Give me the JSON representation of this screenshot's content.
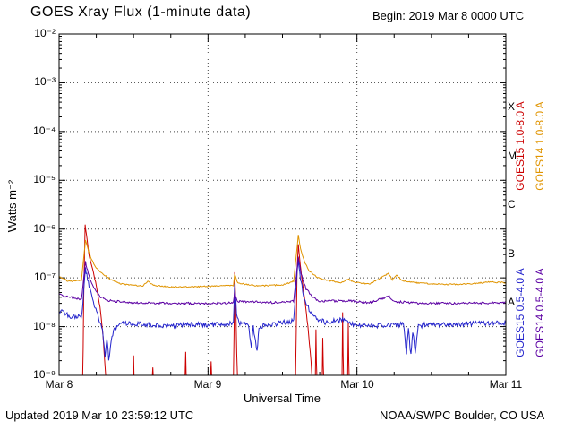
{
  "header": {
    "title": "GOES Xray Flux (1-minute data)",
    "begin_label": "Begin: 2019 Mar 8 0000 UTC"
  },
  "footer": {
    "updated": "Updated 2019 Mar 10 23:59:12 UTC",
    "credit": "NOAA/SWPC Boulder, CO USA"
  },
  "axes": {
    "x": {
      "label": "Universal Time",
      "ticks": [
        "Mar 8",
        "Mar 9",
        "Mar 10",
        "Mar 11"
      ]
    },
    "y": {
      "label": "Watts m⁻²",
      "ticks": [
        "10⁻²",
        "10⁻³",
        "10⁻⁴",
        "10⁻⁵",
        "10⁻⁶",
        "10⁻⁷",
        "10⁻⁸",
        "10⁻⁹"
      ]
    },
    "right_classes": [
      "X",
      "M",
      "C",
      "B",
      "A"
    ]
  },
  "legend": [
    {
      "label": "GOES15 1.0-8.0 A",
      "color": "#cc0000"
    },
    {
      "label": "GOES14 1.0-8.0 A",
      "color": "#e09400"
    },
    {
      "label": "GOES15 0.5-4.0 A",
      "color": "#2424cc"
    },
    {
      "label": "GOES14 0.5-4.0 A",
      "color": "#5c00a3"
    }
  ],
  "chart_data": {
    "type": "line",
    "title": "GOES Xray Flux (1-minute data)",
    "xlabel": "Universal Time",
    "ylabel": "Watts m⁻²",
    "yscale": "log",
    "ylim": [
      1e-09,
      0.01
    ],
    "x_range_hours": [
      0,
      72
    ],
    "x_day_labels": [
      "Mar 8",
      "Mar 9",
      "Mar 10",
      "Mar 11"
    ],
    "grid": "dotted horizontal lines at each decade, dotted vertical lines at day boundaries",
    "flare_class_letters": [
      "X",
      "M",
      "C",
      "B",
      "A"
    ],
    "series": [
      {
        "name": "GOES15 1.0-8.0 A",
        "color": "#cc0000",
        "z": 1,
        "seed": 42,
        "noise": 0.03,
        "points": [
          [
            0,
            4e-10
          ],
          [
            3.8,
            4e-10
          ],
          [
            3.95,
            3e-08
          ],
          [
            4.2,
            1.2e-06
          ],
          [
            4.4,
            8e-07
          ],
          [
            4.8,
            3e-07
          ],
          [
            5.4,
            1.5e-07
          ],
          [
            6.0,
            7e-08
          ],
          [
            6.6,
            2.5e-08
          ],
          [
            7.1,
            6e-09
          ],
          [
            7.5,
            1e-09
          ],
          [
            7.7,
            4e-10
          ],
          [
            11.9,
            4e-10
          ],
          [
            12.0,
            2.5e-09
          ],
          [
            12.15,
            4e-10
          ],
          [
            15.0,
            4e-10
          ],
          [
            15.1,
            1.5e-09
          ],
          [
            15.2,
            4e-10
          ],
          [
            20.3,
            4e-10
          ],
          [
            20.4,
            3e-09
          ],
          [
            20.55,
            4e-10
          ],
          [
            24.4,
            4e-10
          ],
          [
            24.5,
            2e-09
          ],
          [
            24.6,
            4e-10
          ],
          [
            28.1,
            4e-10
          ],
          [
            28.3,
            1.3e-07
          ],
          [
            28.5,
            2.2e-08
          ],
          [
            28.75,
            4e-10
          ],
          [
            38.1,
            4e-10
          ],
          [
            38.35,
            1.5e-07
          ],
          [
            38.55,
            5e-07
          ],
          [
            38.75,
            2.5e-07
          ],
          [
            39.1,
            1e-07
          ],
          [
            39.6,
            3.5e-08
          ],
          [
            40.1,
            1e-08
          ],
          [
            40.6,
            2e-09
          ],
          [
            40.9,
            4e-10
          ],
          [
            41.3,
            4e-10
          ],
          [
            41.4,
            9e-09
          ],
          [
            41.55,
            4e-10
          ],
          [
            42.4,
            4e-10
          ],
          [
            42.5,
            6e-09
          ],
          [
            42.65,
            4e-10
          ],
          [
            45.6,
            4e-10
          ],
          [
            45.7,
            2e-08
          ],
          [
            45.85,
            4e-10
          ],
          [
            46.5,
            4e-10
          ],
          [
            46.6,
            1.2e-08
          ],
          [
            46.75,
            4e-10
          ],
          [
            72,
            4e-10
          ]
        ]
      },
      {
        "name": "GOES14 1.0-8.0 A",
        "color": "#e09400",
        "z": 4,
        "seed": 43,
        "noise": 0.025,
        "points": [
          [
            0,
            1.05e-07
          ],
          [
            1.5,
            8.5e-08
          ],
          [
            3.6,
            9e-08
          ],
          [
            4.25,
            6e-07
          ],
          [
            4.6,
            4.2e-07
          ],
          [
            5.2,
            2.4e-07
          ],
          [
            6.0,
            1.6e-07
          ],
          [
            7.0,
            1.2e-07
          ],
          [
            8.5,
            9e-08
          ],
          [
            10.0,
            7.5e-08
          ],
          [
            13.5,
            6.8e-08
          ],
          [
            14.3,
            8.5e-08
          ],
          [
            15.2,
            7e-08
          ],
          [
            18.0,
            6.5e-08
          ],
          [
            22.0,
            6.6e-08
          ],
          [
            26.0,
            6.8e-08
          ],
          [
            28.1,
            7e-08
          ],
          [
            28.3,
            1.2e-07
          ],
          [
            28.8,
            7.8e-08
          ],
          [
            32.0,
            6.8e-08
          ],
          [
            36.0,
            7.2e-08
          ],
          [
            37.8,
            8.5e-08
          ],
          [
            38.55,
            7.5e-07
          ],
          [
            38.9,
            4e-07
          ],
          [
            39.5,
            2.2e-07
          ],
          [
            40.3,
            1.4e-07
          ],
          [
            41.5,
            1.05e-07
          ],
          [
            43.0,
            9e-08
          ],
          [
            45.5,
            8e-08
          ],
          [
            46.6,
            9.5e-08
          ],
          [
            47.5,
            8.2e-08
          ],
          [
            50.0,
            7.4e-08
          ],
          [
            53.1,
            1.25e-07
          ],
          [
            53.7,
            9e-08
          ],
          [
            54.4,
            1.15e-07
          ],
          [
            55.2,
            8.8e-08
          ],
          [
            58.0,
            7.8e-08
          ],
          [
            62.0,
            7.3e-08
          ],
          [
            66.0,
            7.5e-08
          ],
          [
            69.5,
            8.2e-08
          ],
          [
            72,
            8e-08
          ]
        ]
      },
      {
        "name": "GOES15 0.5-4.0 A",
        "color": "#2424cc",
        "z": 2,
        "seed": 45,
        "noise": 0.1,
        "points": [
          [
            0,
            2.2e-08
          ],
          [
            2.0,
            1.5e-08
          ],
          [
            3.7,
            1.7e-08
          ],
          [
            4.25,
            1.6e-07
          ],
          [
            4.7,
            8e-08
          ],
          [
            5.4,
            3.5e-08
          ],
          [
            6.2,
            1.7e-08
          ],
          [
            7.0,
            9e-09
          ],
          [
            7.4,
            2.5e-09
          ],
          [
            7.7,
            6e-09
          ],
          [
            8.0,
            2e-09
          ],
          [
            8.4,
            5e-09
          ],
          [
            8.9,
            9e-09
          ],
          [
            10,
            1.2e-08
          ],
          [
            14,
            1.1e-08
          ],
          [
            18,
            1.05e-08
          ],
          [
            22,
            1.1e-08
          ],
          [
            26,
            1.1e-08
          ],
          [
            28.1,
            1.2e-08
          ],
          [
            28.3,
            7e-08
          ],
          [
            28.6,
            2e-08
          ],
          [
            29.0,
            1.2e-08
          ],
          [
            30.5,
            1.1e-08
          ],
          [
            31.0,
            4e-09
          ],
          [
            31.3,
            1e-08
          ],
          [
            31.9,
            3e-09
          ],
          [
            32.2,
            1e-08
          ],
          [
            34,
            1.1e-08
          ],
          [
            37.8,
            1.3e-08
          ],
          [
            38.55,
            2.4e-07
          ],
          [
            38.9,
            9e-08
          ],
          [
            39.5,
            4e-08
          ],
          [
            40.3,
            2.2e-08
          ],
          [
            41.5,
            1.5e-08
          ],
          [
            43,
            1.2e-08
          ],
          [
            45.7,
            1.4e-08
          ],
          [
            47,
            1.1e-08
          ],
          [
            51,
            1.05e-08
          ],
          [
            55.5,
            1.1e-08
          ],
          [
            56.0,
            3e-09
          ],
          [
            56.3,
            9e-09
          ],
          [
            56.7,
            2.5e-09
          ],
          [
            57.0,
            8e-09
          ],
          [
            57.4,
            3e-09
          ],
          [
            57.9,
            1e-08
          ],
          [
            59,
            1.1e-08
          ],
          [
            63,
            1.1e-08
          ],
          [
            67,
            1.15e-08
          ],
          [
            72,
            1.2e-08
          ]
        ]
      },
      {
        "name": "GOES14 0.5-4.0 A",
        "color": "#5c00a3",
        "z": 3,
        "seed": 44,
        "noise": 0.045,
        "points": [
          [
            0,
            4.5e-08
          ],
          [
            3.6,
            3.6e-08
          ],
          [
            4.25,
            2.2e-07
          ],
          [
            4.7,
            1.2e-07
          ],
          [
            5.5,
            6.5e-08
          ],
          [
            6.5,
            4.2e-08
          ],
          [
            8.0,
            3.4e-08
          ],
          [
            12,
            3.1e-08
          ],
          [
            18,
            3e-08
          ],
          [
            24,
            3e-08
          ],
          [
            28.1,
            3.1e-08
          ],
          [
            28.3,
            5e-08
          ],
          [
            28.7,
            3.3e-08
          ],
          [
            34,
            3.1e-08
          ],
          [
            37.8,
            3.3e-08
          ],
          [
            38.55,
            2.6e-07
          ],
          [
            39.0,
            1.2e-07
          ],
          [
            39.8,
            6e-08
          ],
          [
            40.8,
            4e-08
          ],
          [
            42,
            3.3e-08
          ],
          [
            46.6,
            3.4e-08
          ],
          [
            50,
            3.1e-08
          ],
          [
            53.2,
            4.2e-08
          ],
          [
            53.9,
            3.3e-08
          ],
          [
            58,
            3e-08
          ],
          [
            64,
            3e-08
          ],
          [
            72,
            3.1e-08
          ]
        ]
      }
    ]
  }
}
